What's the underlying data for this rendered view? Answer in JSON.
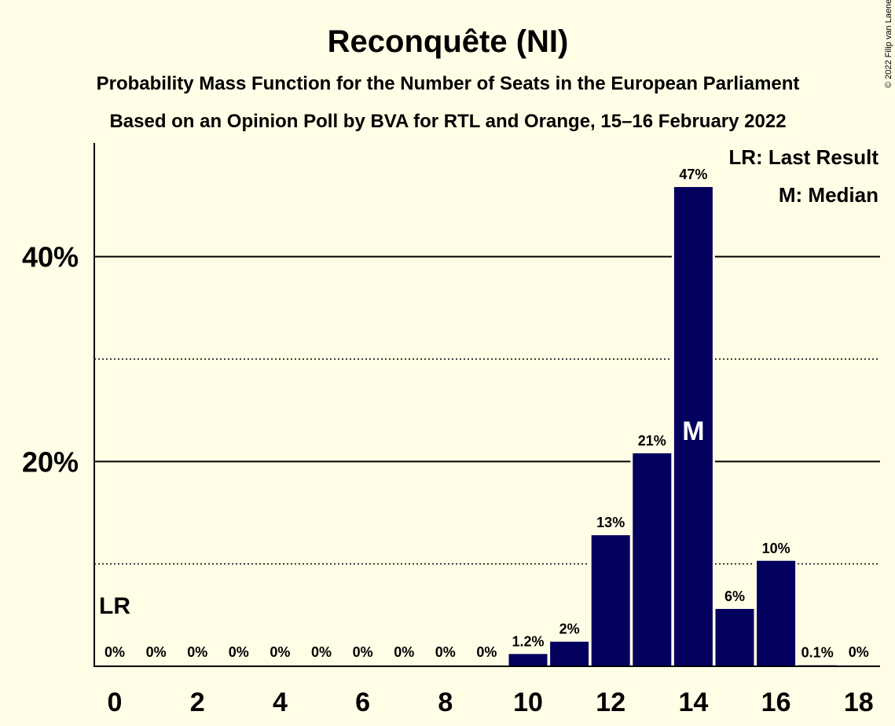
{
  "chart_data": {
    "type": "bar",
    "title": "Reconquête (NI)",
    "subtitle1": "Probability Mass Function for the Number of Seats in the European Parliament",
    "subtitle2": "Based on an Opinion Poll by BVA for RTL and Orange, 15–16 February 2022",
    "copyright": "© 2022 Filip van Laenen",
    "categories": [
      0,
      1,
      2,
      3,
      4,
      5,
      6,
      7,
      8,
      9,
      10,
      11,
      12,
      13,
      14,
      15,
      16,
      17,
      18
    ],
    "values": [
      0,
      0,
      0,
      0,
      0,
      0,
      0,
      0,
      0,
      0,
      1.2,
      2.4,
      12.8,
      20.8,
      46.8,
      5.6,
      10.3,
      0.1,
      0
    ],
    "value_labels": [
      "0%",
      "0%",
      "0%",
      "0%",
      "0%",
      "0%",
      "0%",
      "0%",
      "0%",
      "0%",
      "1.2%",
      "2%",
      "13%",
      "21%",
      "47%",
      "6%",
      "10%",
      "0.1%",
      "0%"
    ],
    "x_tick_labels": [
      "0",
      "2",
      "4",
      "6",
      "8",
      "10",
      "12",
      "14",
      "16",
      "18"
    ],
    "x_tick_values": [
      0,
      2,
      4,
      6,
      8,
      10,
      12,
      14,
      16,
      18
    ],
    "y_major_ticks": [
      20,
      40
    ],
    "y_major_labels": [
      "20%",
      "40%"
    ],
    "y_minor_gridlines": [
      10,
      30
    ],
    "ylim": [
      0,
      50
    ],
    "last_result_seat": 0,
    "last_result_label": "LR",
    "median_seat": 14,
    "median_label": "M",
    "legend": [
      "LR: Last Result",
      "M: Median"
    ],
    "bar_color": "#03005E",
    "background_color": "#FFFDE5"
  }
}
